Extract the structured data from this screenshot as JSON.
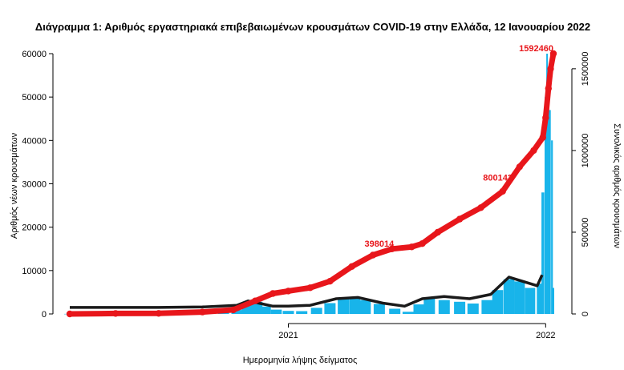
{
  "chart_data": {
    "type": "bar",
    "title": "Διάγραμμα 1: Αριθμός εργαστηριακά επιβεβαιωμένων κρουσμάτων COVID-19 στην Ελλάδα, 12 Ιανουαρίου 2022",
    "xlabel": "Ημερομηνία λήψης δείγματος",
    "ylabel_left": "Αριθμός νέων κρουσμάτων",
    "ylabel_right": "Συνολικός αριθμός κρουσμάτων",
    "x_range": [
      "2020-02-26",
      "2022-01-12"
    ],
    "x_ticks": [
      {
        "date": "2021-01-01",
        "label": "2021"
      },
      {
        "date": "2022-01-01",
        "label": "2022"
      }
    ],
    "ylim_left": [
      0,
      60000
    ],
    "yticks_left": [
      0,
      10000,
      20000,
      30000,
      40000,
      50000,
      60000
    ],
    "ylim_right": [
      0,
      1592460
    ],
    "yticks_right": [
      0,
      500000,
      1000000,
      1500000
    ],
    "colors": {
      "bars": "#18b4ea",
      "average": "#1a1a1a",
      "cumulative": "#e8161b"
    },
    "series": [
      {
        "kind": "bar",
        "axis": "left",
        "points": [
          [
            "2020-02-26",
            10
          ],
          [
            "2020-04-01",
            90
          ],
          [
            "2020-05-15",
            20
          ],
          [
            "2020-07-01",
            30
          ],
          [
            "2020-08-01",
            160
          ],
          [
            "2020-09-01",
            300
          ],
          [
            "2020-10-01",
            450
          ],
          [
            "2020-10-20",
            900
          ],
          [
            "2020-11-01",
            2200
          ],
          [
            "2020-11-10",
            3200
          ],
          [
            "2020-11-20",
            2800
          ],
          [
            "2020-12-01",
            1700
          ],
          [
            "2020-12-15",
            1000
          ],
          [
            "2021-01-01",
            700
          ],
          [
            "2021-01-20",
            650
          ],
          [
            "2021-02-10",
            1400
          ],
          [
            "2021-03-01",
            2500
          ],
          [
            "2021-03-20",
            3500
          ],
          [
            "2021-04-05",
            3600
          ],
          [
            "2021-04-20",
            3200
          ],
          [
            "2021-05-10",
            2300
          ],
          [
            "2021-06-01",
            1200
          ],
          [
            "2021-06-20",
            500
          ],
          [
            "2021-07-05",
            2200
          ],
          [
            "2021-07-20",
            3500
          ],
          [
            "2021-08-10",
            3200
          ],
          [
            "2021-09-01",
            2800
          ],
          [
            "2021-09-20",
            2400
          ],
          [
            "2021-10-10",
            3200
          ],
          [
            "2021-10-25",
            5500
          ],
          [
            "2021-11-10",
            8000
          ],
          [
            "2021-11-25",
            7500
          ],
          [
            "2021-12-10",
            6000
          ],
          [
            "2021-12-24",
            7000
          ],
          [
            "2021-12-28",
            28000
          ],
          [
            "2022-01-01",
            50000
          ],
          [
            "2022-01-03",
            60000
          ],
          [
            "2022-01-05",
            52000
          ],
          [
            "2022-01-07",
            47000
          ],
          [
            "2022-01-10",
            40000
          ],
          [
            "2022-01-12",
            6000
          ]
        ]
      },
      {
        "kind": "line",
        "axis": "left",
        "points": [
          [
            "2020-02-26",
            1500
          ],
          [
            "2020-05-01",
            1500
          ],
          [
            "2020-07-01",
            1500
          ],
          [
            "2020-09-01",
            1600
          ],
          [
            "2020-10-20",
            2000
          ],
          [
            "2020-11-05",
            3000
          ],
          [
            "2020-11-20",
            2500
          ],
          [
            "2020-12-10",
            1800
          ],
          [
            "2021-01-01",
            1800
          ],
          [
            "2021-02-01",
            2000
          ],
          [
            "2021-03-10",
            3500
          ],
          [
            "2021-04-10",
            3800
          ],
          [
            "2021-05-15",
            2500
          ],
          [
            "2021-06-15",
            1800
          ],
          [
            "2021-07-10",
            3500
          ],
          [
            "2021-08-10",
            4000
          ],
          [
            "2021-09-15",
            3500
          ],
          [
            "2021-10-15",
            4500
          ],
          [
            "2021-11-10",
            8500
          ],
          [
            "2021-11-30",
            7500
          ],
          [
            "2021-12-20",
            6500
          ],
          [
            "2021-12-27",
            9000
          ]
        ]
      },
      {
        "kind": "line",
        "axis": "right",
        "points": [
          [
            "2020-02-26",
            0
          ],
          [
            "2020-05-01",
            2700
          ],
          [
            "2020-07-01",
            3500
          ],
          [
            "2020-09-01",
            12000
          ],
          [
            "2020-10-15",
            25000
          ],
          [
            "2020-11-15",
            80000
          ],
          [
            "2020-12-10",
            125000
          ],
          [
            "2021-01-01",
            140000
          ],
          [
            "2021-02-01",
            160000
          ],
          [
            "2021-03-01",
            200000
          ],
          [
            "2021-04-01",
            290000
          ],
          [
            "2021-05-01",
            360000
          ],
          [
            "2021-05-28",
            398014
          ],
          [
            "2021-06-25",
            410000
          ],
          [
            "2021-07-10",
            430000
          ],
          [
            "2021-08-01",
            500000
          ],
          [
            "2021-09-01",
            580000
          ],
          [
            "2021-10-01",
            650000
          ],
          [
            "2021-11-01",
            750000
          ],
          [
            "2021-11-25",
            900000
          ],
          [
            "2021-12-15",
            1000000
          ],
          [
            "2021-12-28",
            1080000
          ],
          [
            "2022-01-01",
            1200000
          ],
          [
            "2022-01-05",
            1380000
          ],
          [
            "2022-01-08",
            1500000
          ],
          [
            "2022-01-12",
            1592460
          ]
        ]
      }
    ],
    "annotations": [
      {
        "text": "398014",
        "date": "2021-05-10",
        "value": 398014
      },
      {
        "text": "800142",
        "date": "2021-10-25",
        "value": 800142
      },
      {
        "text": "1592460",
        "date": "2022-01-12",
        "value": 1592460
      }
    ]
  }
}
